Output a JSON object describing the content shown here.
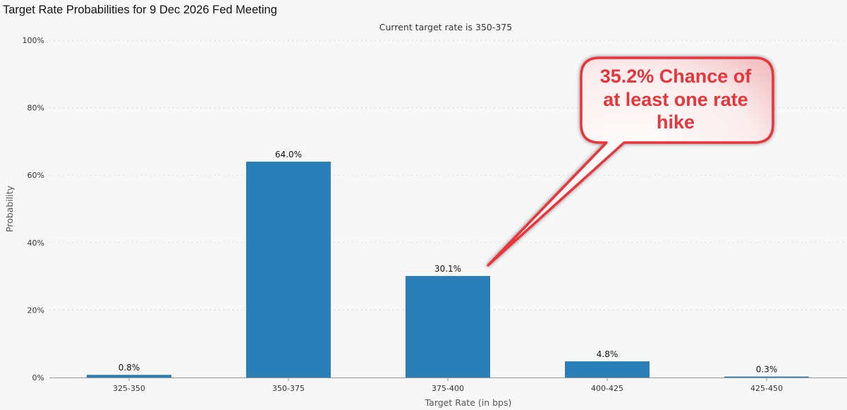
{
  "title": "Target Rate Probabilities for 9 Dec 2026 Fed Meeting",
  "callout": {
    "lines": [
      "35.2% Chance of",
      "at least one rate",
      "hike"
    ]
  },
  "colors": {
    "bar": "#2a7fb8",
    "callout": "#e8353b",
    "background": "#f7f7f7"
  },
  "chart_data": {
    "type": "bar",
    "subtitle": "Current target rate is 350-375",
    "xlabel": "Target Rate (in bps)",
    "ylabel": "Probability",
    "categories": [
      "325-350",
      "350-375",
      "375-400",
      "400-425",
      "425-450"
    ],
    "values": [
      0.8,
      64.0,
      30.1,
      4.8,
      0.3
    ],
    "value_labels": [
      "0.8%",
      "64.0%",
      "30.1%",
      "4.8%",
      "0.3%"
    ],
    "ylim": [
      0,
      100
    ],
    "yticks": [
      "0%",
      "20%",
      "40%",
      "60%",
      "80%",
      "100%"
    ],
    "grid": "horizontal dotted",
    "legend": "none"
  }
}
